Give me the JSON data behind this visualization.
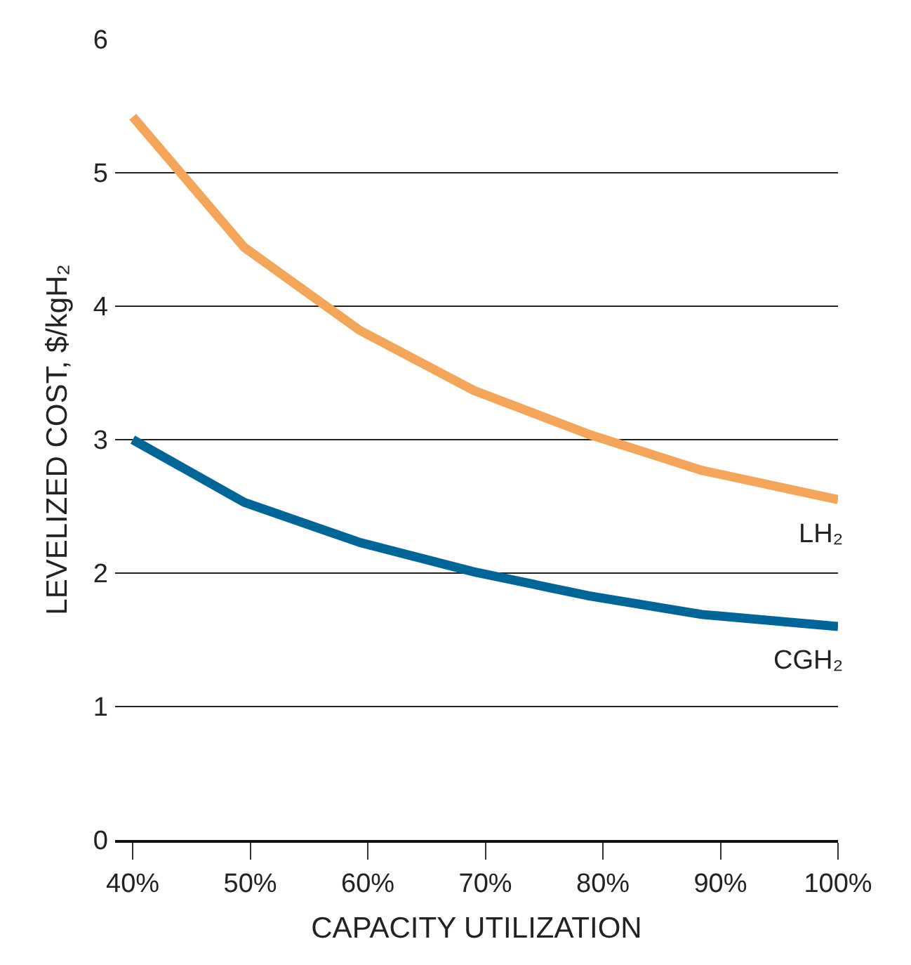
{
  "chart_data": {
    "type": "line",
    "xlabel": "CAPACITY UTILIZATION",
    "ylabel": "LEVELIZED COST, $/kgH₂",
    "x": [
      40,
      49.5,
      59.3,
      69,
      78.8,
      88.4,
      100
    ],
    "series": [
      {
        "name": "LH₂",
        "color": "#f5a55a",
        "values": [
          5.42,
          4.44,
          3.82,
          3.37,
          3.04,
          2.77,
          2.55
        ]
      },
      {
        "name": "CGH₂",
        "color": "#006699",
        "values": [
          3.0,
          2.53,
          2.23,
          2.01,
          1.83,
          1.69,
          1.6
        ]
      }
    ],
    "xlim": [
      38.5,
      100
    ],
    "ylim": [
      0,
      6
    ],
    "xticks": [
      {
        "value": 40,
        "label": "40%"
      },
      {
        "value": 50,
        "label": "50%"
      },
      {
        "value": 60,
        "label": "60%"
      },
      {
        "value": 70,
        "label": "70%"
      },
      {
        "value": 80,
        "label": "80%"
      },
      {
        "value": 90,
        "label": "90%"
      },
      {
        "value": 100,
        "label": "100%"
      }
    ],
    "yticks": [
      0,
      1,
      2,
      3,
      4,
      5,
      6
    ],
    "grid": "y",
    "legend": false,
    "marker": "none",
    "line_style": "solid"
  }
}
